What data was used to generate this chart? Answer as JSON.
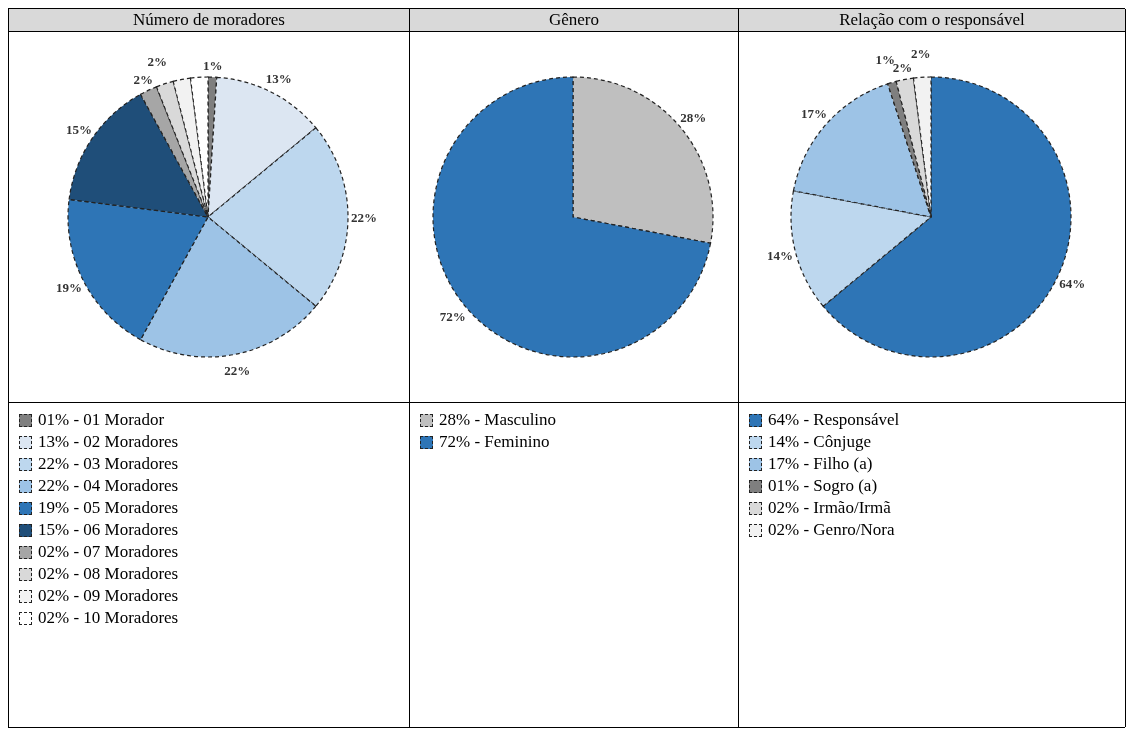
{
  "chart_data": [
    {
      "type": "pie",
      "title": "Número de moradores",
      "categories": [
        "01% - 01 Morador",
        "13% - 02 Moradores",
        "22% - 03 Moradores",
        "22% - 04 Moradores",
        "19% - 05 Moradores",
        "15% - 06 Moradores",
        "02% - 07 Moradores",
        "02% - 08 Moradores",
        "02% - 09 Moradores",
        "02% - 10 Moradores"
      ],
      "values": [
        1,
        13,
        22,
        22,
        19,
        15,
        2,
        2,
        2,
        2
      ],
      "value_labels": [
        "1%",
        "13%",
        "22%",
        "22%",
        "19%",
        "15%",
        "2%",
        "2%",
        null,
        null
      ],
      "colors": [
        "#7f7f7f",
        "#dce6f2",
        "#bdd7ee",
        "#9dc3e6",
        "#2e75b6",
        "#1f4e79",
        "#a6a6a6",
        "#d9d9d9",
        "#f2f2f2",
        "#ffffff"
      ],
      "legend": "bottom"
    },
    {
      "type": "pie",
      "title": "Gênero",
      "categories": [
        "28% - Masculino",
        "72% - Feminino"
      ],
      "values": [
        28,
        72
      ],
      "value_labels": [
        "28%",
        "72%"
      ],
      "colors": [
        "#bfbfbf",
        "#2e75b6"
      ],
      "legend": "bottom"
    },
    {
      "type": "pie",
      "title": "Relação com o responsável",
      "categories": [
        "64% - Responsável",
        "14% - Cônjuge",
        "17% - Filho (a)",
        "01% - Sogro (a)",
        "02% - Irmão/Irmã",
        "02% - Genro/Nora"
      ],
      "values": [
        64,
        14,
        17,
        1,
        2,
        2
      ],
      "value_labels": [
        "64%",
        "14%",
        "17%",
        "1%",
        "2%",
        "2%"
      ],
      "colors": [
        "#2e75b6",
        "#bdd7ee",
        "#9dc3e6",
        "#7f7f7f",
        "#d9d9d9",
        "#f2f2f2"
      ],
      "legend": "bottom"
    }
  ]
}
